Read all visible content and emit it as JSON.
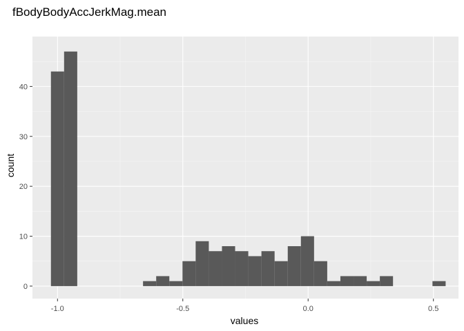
{
  "chart_data": {
    "type": "bar",
    "title": "fBodyBodyAccJerkMag.mean",
    "xlabel": "values",
    "ylabel": "count",
    "xlim": [
      -1.1,
      0.6
    ],
    "ylim": [
      -2.5,
      50
    ],
    "x_ticks": [
      -1.0,
      -0.5,
      0.0,
      0.5
    ],
    "x_tick_labels": [
      "-1.0",
      "-0.5",
      "0.0",
      "0.5"
    ],
    "y_ticks": [
      0,
      10,
      20,
      30,
      40
    ],
    "y_tick_labels": [
      "0",
      "10",
      "20",
      "30",
      "40"
    ],
    "bin_width": 0.0525,
    "bins": [
      {
        "x": -1.0,
        "count": 43
      },
      {
        "x": -0.9475,
        "count": 47
      },
      {
        "x": -0.895,
        "count": 0
      },
      {
        "x": -0.8425,
        "count": 0
      },
      {
        "x": -0.79,
        "count": 0
      },
      {
        "x": -0.7375,
        "count": 0
      },
      {
        "x": -0.685,
        "count": 0
      },
      {
        "x": -0.6325,
        "count": 1
      },
      {
        "x": -0.58,
        "count": 2
      },
      {
        "x": -0.5275,
        "count": 1
      },
      {
        "x": -0.475,
        "count": 5
      },
      {
        "x": -0.4225,
        "count": 9
      },
      {
        "x": -0.37,
        "count": 7
      },
      {
        "x": -0.3175,
        "count": 8
      },
      {
        "x": -0.265,
        "count": 7
      },
      {
        "x": -0.2125,
        "count": 6
      },
      {
        "x": -0.16,
        "count": 7
      },
      {
        "x": -0.1075,
        "count": 5
      },
      {
        "x": -0.055,
        "count": 8
      },
      {
        "x": -0.0025,
        "count": 10
      },
      {
        "x": 0.05,
        "count": 5
      },
      {
        "x": 0.1025,
        "count": 1
      },
      {
        "x": 0.155,
        "count": 2
      },
      {
        "x": 0.2075,
        "count": 2
      },
      {
        "x": 0.26,
        "count": 1
      },
      {
        "x": 0.3125,
        "count": 2
      },
      {
        "x": 0.365,
        "count": 0
      },
      {
        "x": 0.4175,
        "count": 0
      },
      {
        "x": 0.47,
        "count": 0
      },
      {
        "x": 0.5225,
        "count": 1
      }
    ],
    "grid": true,
    "colors": {
      "panel": "#ebebeb",
      "grid_major": "#ffffff",
      "grid_minor": "#f5f5f5",
      "bar": "#595959",
      "tick": "#333333"
    }
  }
}
